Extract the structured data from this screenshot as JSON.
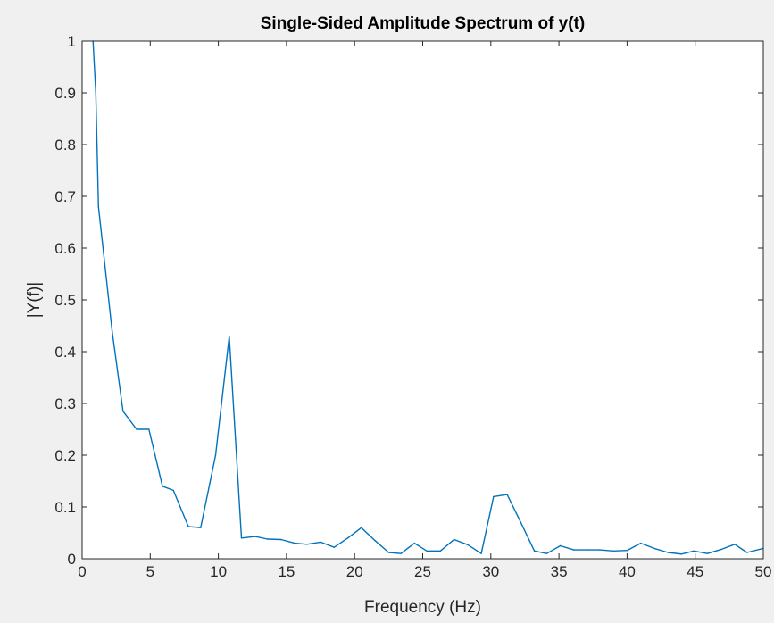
{
  "chart_data": {
    "type": "line",
    "title": "Single-Sided Amplitude Spectrum of y(t)",
    "xlabel": "Frequency (Hz)",
    "ylabel": "|Y(f)|",
    "xlim": [
      0,
      50
    ],
    "ylim": [
      0,
      1
    ],
    "grid": false,
    "legend": "none",
    "line_color": "#0072bd",
    "background": "#f0f0f0",
    "axes_background": "#ffffff",
    "xticks": [
      0,
      5,
      10,
      15,
      20,
      25,
      30,
      35,
      40,
      45,
      50
    ],
    "xtick_labels": [
      "0",
      "5",
      "10",
      "15",
      "20",
      "25",
      "30",
      "35",
      "40",
      "45",
      "50"
    ],
    "yticks": [
      0,
      0.1,
      0.2,
      0.3,
      0.4,
      0.5,
      0.6,
      0.7,
      0.8,
      0.9,
      1
    ],
    "ytick_labels": [
      "0",
      "0.1",
      "0.2",
      "0.3",
      "0.4",
      "0.5",
      "0.6",
      "0.7",
      "0.8",
      "0.9",
      "1"
    ],
    "series": [
      {
        "x": [
          0.8,
          1.0,
          1.2,
          2.2,
          3.0,
          4.0,
          4.9,
          5.9,
          6.7,
          7.8,
          8.7,
          9.8,
          10.8,
          11.7,
          12.7,
          13.6,
          14.6,
          15.6,
          16.5,
          17.5,
          18.5,
          19.5,
          20.5,
          21.5,
          22.5,
          23.4,
          24.4,
          25.3,
          26.3,
          27.3,
          28.3,
          29.3,
          30.2,
          31.2,
          32.2,
          33.2,
          34.1,
          35.1,
          36.1,
          37.1,
          38.0,
          39.0,
          40.0,
          41.0,
          42.0,
          43.0,
          44.0,
          44.9,
          45.9,
          46.9,
          47.9,
          48.8,
          50.0
        ],
        "y": [
          1.0,
          0.9,
          0.68,
          0.44,
          0.285,
          0.25,
          0.25,
          0.14,
          0.132,
          0.062,
          0.06,
          0.2,
          0.43,
          0.04,
          0.043,
          0.038,
          0.037,
          0.03,
          0.028,
          0.032,
          0.022,
          0.04,
          0.06,
          0.035,
          0.012,
          0.01,
          0.03,
          0.015,
          0.015,
          0.037,
          0.027,
          0.01,
          0.12,
          0.124,
          0.07,
          0.015,
          0.01,
          0.025,
          0.017,
          0.017,
          0.017,
          0.015,
          0.016,
          0.03,
          0.02,
          0.012,
          0.009,
          0.015,
          0.01,
          0.018,
          0.028,
          0.012,
          0.02
        ]
      }
    ]
  }
}
